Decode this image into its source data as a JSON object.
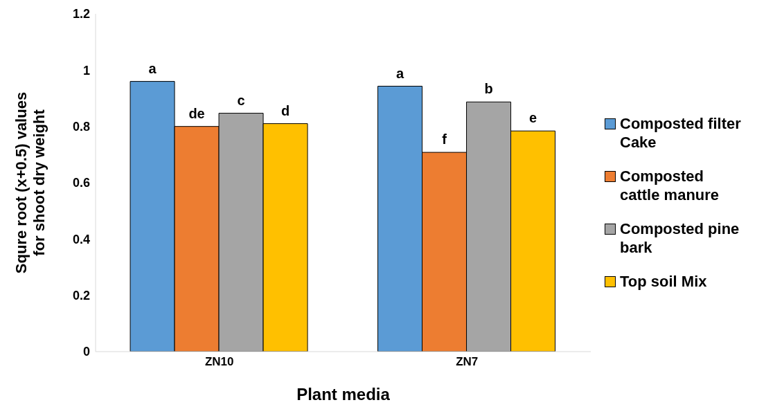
{
  "chart_data": {
    "type": "bar",
    "xlabel": "Plant media",
    "ylabel": "Squre root (x+0.5) values for shoot  dry weight",
    "categories": [
      "ZN10",
      "ZN7"
    ],
    "series": [
      {
        "name": "Composted filter Cake",
        "color": "#5b9bd5",
        "values": [
          0.96,
          0.943
        ],
        "value_labels": [
          "a",
          "a"
        ]
      },
      {
        "name": "Composted cattle manure",
        "color": "#ed7d31",
        "values": [
          0.8,
          0.708
        ],
        "value_labels": [
          "de",
          "f"
        ]
      },
      {
        "name": "Composted pine bark",
        "color": "#a5a5a5",
        "values": [
          0.847,
          0.887
        ],
        "value_labels": [
          "c",
          "b"
        ]
      },
      {
        "name": "Top soil Mix",
        "color": "#ffc000",
        "values": [
          0.81,
          0.784
        ],
        "value_labels": [
          "d",
          "e"
        ]
      }
    ],
    "ylim": [
      0,
      1.2
    ],
    "yticks": [
      0,
      0.2,
      0.4,
      0.6,
      0.8,
      1,
      1.2
    ],
    "grid": false,
    "legend": "right"
  }
}
